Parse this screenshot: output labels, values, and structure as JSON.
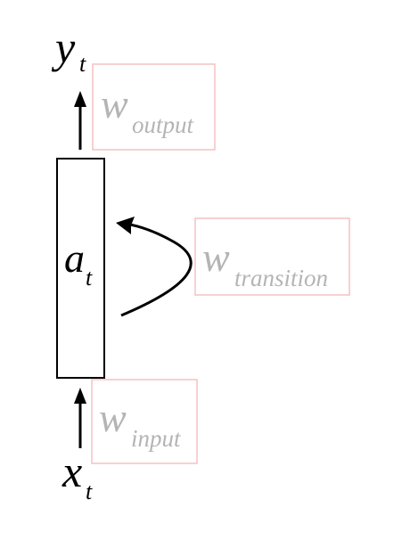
{
  "output_var": {
    "main": "y",
    "sub": "t"
  },
  "hidden_var": {
    "main": "a",
    "sub": "t"
  },
  "input_var": {
    "main": "x",
    "sub": "t"
  },
  "weights": {
    "output": {
      "main": "w",
      "sub": "output"
    },
    "transition": {
      "main": "w",
      "sub": "transition"
    },
    "input": {
      "main": "w",
      "sub": "input"
    }
  },
  "colors": {
    "stroke": "#000000",
    "weight_text": "#b4b4b4",
    "weight_box_border": "#f4c2c2"
  }
}
